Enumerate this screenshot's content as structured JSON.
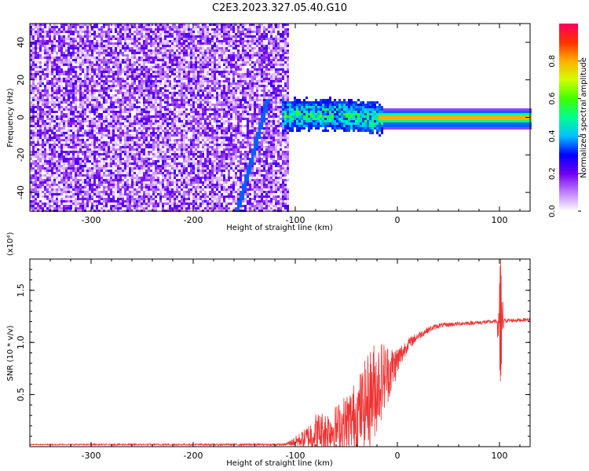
{
  "chart_data": [
    {
      "type": "heatmap",
      "title": "C2E3.2023.327.05.40.G10",
      "xlabel": "Height of straight line (km)",
      "ylabel": "Frequency (Hz)",
      "xlim": [
        -360,
        130
      ],
      "ylim": [
        -50,
        50
      ],
      "xticks": [
        -300,
        -200,
        -100,
        0,
        100
      ],
      "yticks": [
        -40,
        -20,
        0,
        20,
        40
      ],
      "colorbar": {
        "label": "Normalized spectral amplitude",
        "range": [
          0,
          1
        ],
        "ticks": [
          0.0,
          0.2,
          0.4,
          0.6,
          0.8
        ],
        "tick_labels": [
          "0.0",
          "0.2",
          "0.4",
          "0.6",
          "0.8"
        ],
        "colormap": [
          "#ffffff",
          "#c080ff",
          "#7000f0",
          "#0000ff",
          "#00c0ff",
          "#00ff90",
          "#40ff00",
          "#d0ff00",
          "#ffb000",
          "#ff3000",
          "#ff0060"
        ]
      },
      "features": {
        "noise_region_x": [
          -360,
          -108
        ],
        "noise_amplitude": [
          0.0,
          0.25
        ],
        "diagonal_track": {
          "from": [
            -158,
            -50
          ],
          "to": [
            -128,
            10
          ],
          "amplitude": 0.35
        },
        "turbulent_band": {
          "x": [
            -115,
            -15
          ],
          "center_hz": 2,
          "halfwidth_hz": 8,
          "amplitude": [
            0.3,
            0.65
          ]
        },
        "steady_band": {
          "x": [
            -20,
            130
          ],
          "center_hz": 0,
          "levels": [
            {
              "halfwidth_hz": 6,
              "amplitude": 0.15
            },
            {
              "halfwidth_hz": 4,
              "amplitude": 0.35
            },
            {
              "halfwidth_hz": 2.5,
              "amplitude": 0.5
            },
            {
              "halfwidth_hz": 1.2,
              "amplitude": 0.8
            }
          ]
        }
      }
    },
    {
      "type": "line",
      "xlabel": "Height of straight line (km)",
      "ylabel": "SNR (10 * v/v)",
      "y_multiplier_label": "(x10⁴)",
      "xlim": [
        -360,
        130
      ],
      "ylim": [
        0,
        1.8
      ],
      "xticks": [
        -300,
        -200,
        -100,
        0,
        100
      ],
      "yticks": [
        0.5,
        1.0,
        1.5
      ],
      "ytick_labels": [
        "0.5",
        "1.0",
        "1.5"
      ],
      "color": "#ee3333",
      "envelope": {
        "x": [
          -360,
          -110,
          -100,
          -90,
          -80,
          -70,
          -60,
          -50,
          -40,
          -30,
          -25,
          -20,
          -15,
          -10,
          -5,
          0,
          5,
          10,
          20,
          30,
          40,
          60,
          80,
          95,
          100,
          105,
          110,
          130
        ],
        "y": [
          0.02,
          0.02,
          0.05,
          0.08,
          0.13,
          0.15,
          0.18,
          0.22,
          0.3,
          0.42,
          0.5,
          0.58,
          0.65,
          0.7,
          0.75,
          0.82,
          0.9,
          0.98,
          1.06,
          1.12,
          1.16,
          1.18,
          1.19,
          1.2,
          1.2,
          1.21,
          1.21,
          1.22
        ],
        "amp": [
          0.005,
          0.01,
          0.05,
          0.1,
          0.2,
          0.2,
          0.22,
          0.3,
          0.35,
          0.45,
          0.5,
          0.45,
          0.38,
          0.3,
          0.22,
          0.15,
          0.1,
          0.06,
          0.04,
          0.03,
          0.025,
          0.02,
          0.02,
          0.02,
          0.02,
          0.02,
          0.02,
          0.015
        ]
      },
      "spike": {
        "x": 101,
        "peak": 1.85,
        "trough": 0.6
      }
    }
  ]
}
